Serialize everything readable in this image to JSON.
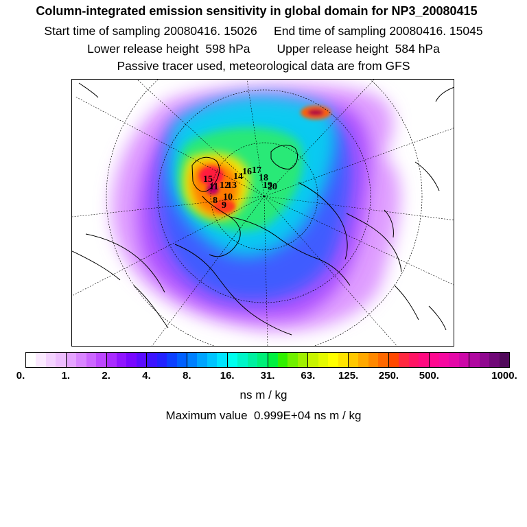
{
  "header": {
    "title": "Column-integrated emission sensitivity in global domain for NP3_20080415",
    "line1": "Start time of sampling 20080416. 15026     End time of sampling 20080416. 15045",
    "line2": "Lower release height  598 hPa        Upper release height  584 hPa",
    "line3": "Passive tracer used, meteorological data are from GFS"
  },
  "map": {
    "projection": "polar stereographic (north pole)",
    "trajectory_labels": [
      "15",
      "14",
      "13",
      "12",
      "11",
      "10",
      "9",
      "8",
      "16",
      "17",
      "18",
      "19",
      "20"
    ]
  },
  "colorbar": {
    "colors": [
      "#ffffff",
      "#fbe9ff",
      "#f4d2ff",
      "#eebdff",
      "#e5a3ff",
      "#d985ff",
      "#cc66ff",
      "#bd47ff",
      "#a92cff",
      "#9015ff",
      "#7808ff",
      "#5a0cff",
      "#3c14ff",
      "#2222ff",
      "#0c40ff",
      "#0060ff",
      "#0080ff",
      "#00a4ff",
      "#00c4ff",
      "#00e4ff",
      "#00ffee",
      "#00f5c8",
      "#00f0a0",
      "#00f078",
      "#00f040",
      "#30f000",
      "#70f000",
      "#a0f000",
      "#c8f400",
      "#e4fa00",
      "#ffff00",
      "#ffe400",
      "#ffc800",
      "#ffa800",
      "#ff8800",
      "#ff6800",
      "#ff4800",
      "#ff2840",
      "#ff1464",
      "#ff0a80",
      "#ff0890",
      "#f608a0",
      "#e408a8",
      "#cc08a8",
      "#b008a0",
      "#900890",
      "#700878",
      "#50085a"
    ],
    "tick_labels": [
      "0.",
      "1.",
      "2.",
      "4.",
      "8.",
      "16.",
      "31.",
      "63.",
      "125.",
      "250.",
      "500.",
      "1000."
    ],
    "units": "ns m / kg",
    "max_label": "Maximum value  0.999E+04 ns m / kg"
  }
}
